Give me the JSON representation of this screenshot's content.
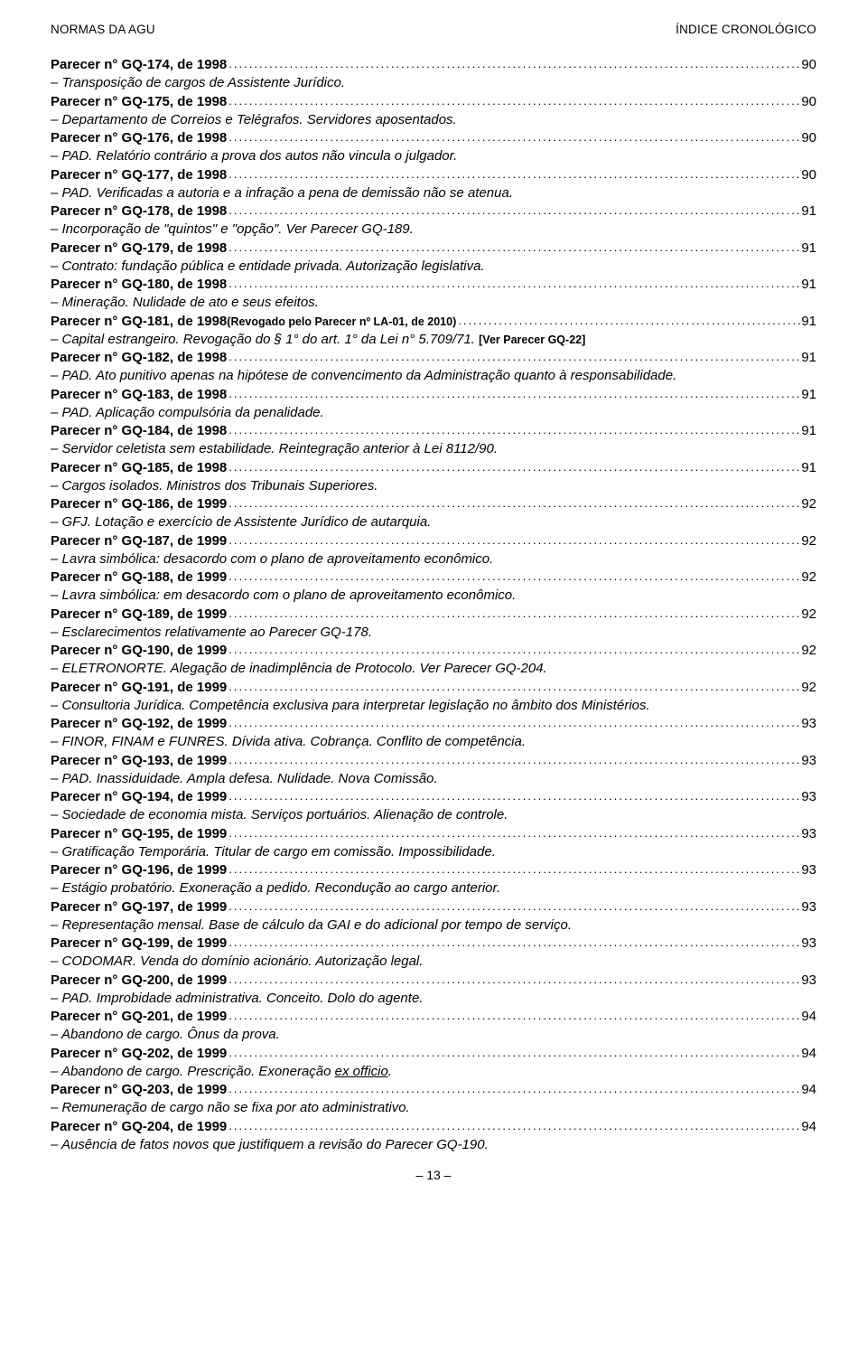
{
  "header": {
    "left": "NORMAS DA AGU",
    "right": "ÍNDICE CRONOLÓGICO"
  },
  "footer": "– 13 –",
  "entries": [
    {
      "title": "Parecer n° GQ-174, de 1998",
      "page": "90",
      "desc": [
        {
          "t": "– Transposição de cargos de Assistente Jurídico."
        }
      ]
    },
    {
      "title": "Parecer n° GQ-175, de 1998",
      "page": "90",
      "desc": [
        {
          "t": "– Departamento de Correios e Telégrafos. Servidores aposentados."
        }
      ]
    },
    {
      "title": "Parecer n° GQ-176, de 1998",
      "page": "90",
      "desc": [
        {
          "t": "– PAD. Relatório contrário a prova dos autos não vincula o julgador."
        }
      ]
    },
    {
      "title": "Parecer n° GQ-177, de 1998",
      "page": "90",
      "desc": [
        {
          "t": "– PAD. Verificadas a autoria e a infração a pena de demissão não se atenua."
        }
      ]
    },
    {
      "title": "Parecer n° GQ-178, de 1998",
      "page": "91",
      "desc": [
        {
          "t": "– Incorporação de \"quintos\" e \"opção\". Ver Parecer GQ-189."
        }
      ]
    },
    {
      "title": "Parecer n° GQ-179, de 1998",
      "page": "91",
      "desc": [
        {
          "t": "– Contrato: fundação pública e entidade privada. Autorização legislativa."
        }
      ]
    },
    {
      "title": "Parecer n° GQ-180, de 1998",
      "page": "91",
      "desc": [
        {
          "t": "– Mineração. Nulidade de ato e seus efeitos."
        }
      ]
    },
    {
      "title": "Parecer n° GQ-181, de 1998 ",
      "title_note": "(Revogado pelo Parecer nº LA-01, de 2010)",
      "page": "91",
      "desc": [
        {
          "t": "– Capital estrangeiro. Revogação do § 1° do art. 1° da Lei n° 5.709/71. "
        },
        {
          "t": "[Ver Parecer GQ-22]",
          "note": true
        }
      ]
    },
    {
      "title": "Parecer n° GQ-182, de 1998",
      "page": "91",
      "desc": [
        {
          "t": "– PAD. Ato punitivo apenas na hipótese de convencimento da Administração quanto à responsabilidade."
        }
      ]
    },
    {
      "title": "Parecer n° GQ-183, de 1998",
      "page": "91",
      "desc": [
        {
          "t": "– PAD. Aplicação compulsória da penalidade."
        }
      ]
    },
    {
      "title": "Parecer n° GQ-184, de 1998",
      "page": "91",
      "desc": [
        {
          "t": "– Servidor celetista sem estabilidade. Reintegração anterior à Lei 8112/90."
        }
      ]
    },
    {
      "title": "Parecer n° GQ-185, de 1998",
      "page": "91",
      "desc": [
        {
          "t": "– Cargos isolados. Ministros dos Tribunais Superiores."
        }
      ]
    },
    {
      "title": "Parecer n° GQ-186, de 1999",
      "page": "92",
      "desc": [
        {
          "t": "– GFJ. Lotação e exercício de Assistente Jurídico de autarquia."
        }
      ]
    },
    {
      "title": "Parecer n° GQ-187, de 1999",
      "page": "92",
      "desc": [
        {
          "t": "– Lavra simbólica: desacordo com o plano de aproveitamento econômico."
        }
      ]
    },
    {
      "title": "Parecer n° GQ-188, de 1999",
      "page": "92",
      "desc": [
        {
          "t": "– Lavra simbólica: em desacordo com o plano de aproveitamento econômico."
        }
      ]
    },
    {
      "title": "Parecer n° GQ-189, de 1999",
      "page": "92",
      "desc": [
        {
          "t": "– Esclarecimentos relativamente ao Parecer GQ-178."
        }
      ]
    },
    {
      "title": "Parecer n° GQ-190, de 1999",
      "page": "92",
      "desc": [
        {
          "t": "– ELETRONORTE. Alegação de inadimplência de Protocolo. Ver Parecer GQ-204."
        }
      ]
    },
    {
      "title": "Parecer n° GQ-191, de 1999",
      "page": "92",
      "desc": [
        {
          "t": "– Consultoria Jurídica. Competência exclusiva para interpretar legislação no âmbito dos Ministérios."
        }
      ]
    },
    {
      "title": "Parecer n° GQ-192, de 1999",
      "page": "93",
      "desc": [
        {
          "t": "– FINOR, FINAM e FUNRES. Dívida ativa. Cobrança. Conflito de competência."
        }
      ]
    },
    {
      "title": "Parecer n° GQ-193, de 1999",
      "page": "93",
      "desc": [
        {
          "t": "– PAD. Inassiduidade. Ampla defesa. Nulidade. Nova Comissão."
        }
      ]
    },
    {
      "title": "Parecer n° GQ-194, de 1999",
      "page": "93",
      "desc": [
        {
          "t": "– Sociedade de economia mista. Serviços portuários. Alienação de controle."
        }
      ]
    },
    {
      "title": "Parecer n° GQ-195, de 1999",
      "page": "93",
      "desc": [
        {
          "t": "– Gratificação Temporária. Titular de cargo em comissão. Impossibilidade."
        }
      ]
    },
    {
      "title": "Parecer n° GQ-196, de 1999",
      "page": "93",
      "desc": [
        {
          "t": "– Estágio probatório. Exoneração a pedido. Recondução ao cargo anterior."
        }
      ]
    },
    {
      "title": "Parecer n° GQ-197, de 1999",
      "page": "93",
      "desc": [
        {
          "t": "– Representação mensal. Base de cálculo da GAI e do adicional por tempo de serviço."
        }
      ]
    },
    {
      "title": "Parecer n° GQ-199, de 1999",
      "page": "93",
      "desc": [
        {
          "t": "– CODOMAR. Venda do domínio acionário. Autorização legal."
        }
      ]
    },
    {
      "title": "Parecer n° GQ-200, de 1999",
      "page": "93",
      "desc": [
        {
          "t": "– PAD. Improbidade administrativa. Conceito. Dolo do agente."
        }
      ]
    },
    {
      "title": "Parecer n° GQ-201, de 1999",
      "page": "94",
      "desc": [
        {
          "t": "– Abandono de cargo. Ônus da prova."
        }
      ]
    },
    {
      "title": "Parecer n° GQ-202, de 1999",
      "page": "94",
      "desc": [
        {
          "t": "– Abandono de cargo. Prescrição. Exoneração "
        },
        {
          "t": "ex officio",
          "under": true
        },
        {
          "t": "."
        }
      ]
    },
    {
      "title": "Parecer n° GQ-203, de 1999",
      "page": "94",
      "desc": [
        {
          "t": "– Remuneração de cargo não se fixa por ato administrativo."
        }
      ]
    },
    {
      "title": "Parecer n° GQ-204, de 1999",
      "page": "94",
      "desc": [
        {
          "t": "– Ausência de fatos novos que justifiquem a revisão do Parecer GQ-190."
        }
      ]
    }
  ]
}
